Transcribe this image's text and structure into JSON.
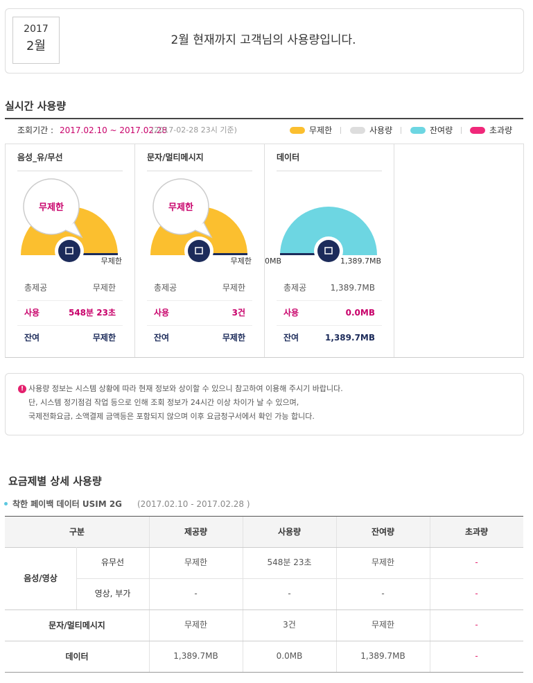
{
  "header": {
    "year": "2017",
    "month": "2월",
    "message": "2월 현재까지 고객님의 사용량입니다."
  },
  "realtime": {
    "title": "실시간 사용량",
    "period_label": "조회기간 :",
    "period": "2017.02.10 ~ 2017.02.28",
    "basis": "(2017-02-28 23시 기준)",
    "legend": [
      {
        "label": "무제한",
        "color": "#fbbf2f"
      },
      {
        "label": "사용량",
        "color": "#dddddd"
      },
      {
        "label": "잔여량",
        "color": "#6dd6e2"
      },
      {
        "label": "초과량",
        "color": "#f0287a"
      }
    ],
    "cards": [
      {
        "title": "음성_유/무선",
        "bubble": "무제한",
        "gauge_color": "#fbbf2f",
        "gauge_right": "무제한",
        "rows": [
          [
            "총제공",
            "무제한"
          ],
          [
            "사용",
            "548분 23초"
          ],
          [
            "잔여",
            "무제한"
          ]
        ]
      },
      {
        "title": "문자/멀티메시지",
        "bubble": "무제한",
        "gauge_color": "#fbbf2f",
        "gauge_right": "무제한",
        "rows": [
          [
            "총제공",
            "무제한"
          ],
          [
            "사용",
            "3건"
          ],
          [
            "잔여",
            "무제한"
          ]
        ]
      },
      {
        "title": "데이터",
        "gauge_color": "#6dd6e2",
        "gauge_left": "0MB",
        "gauge_right": "1,389.7MB",
        "rows": [
          [
            "총제공",
            "1,389.7MB"
          ],
          [
            "사용",
            "0.0MB"
          ],
          [
            "잔여",
            "1,389.7MB"
          ]
        ]
      }
    ]
  },
  "notice": [
    "사용량 정보는 시스템 상황에 따라 현재 정보와 상이할 수 있으니 참고하여 이용해 주시기 바랍니다.",
    "단, 시스템 정기점검 작업 등으로 인해 조회 정보가 24시간 이상 차이가 날 수 있으며,",
    "국제전화요금, 소액결제 금액등은 포함되지 않으며 이후 요금청구서에서 확인 가능 합니다."
  ],
  "detail": {
    "title": "요금제별 상세 사용량",
    "plan": "착한 페이백 데이터 USIM 2G",
    "plan_period": "(2017.02.10 - 2017.02.28 )",
    "table": {
      "headers": [
        "구분",
        "제공량",
        "사용량",
        "잔여량",
        "초과량"
      ],
      "groups": [
        {
          "label": "음성/영상",
          "rows": [
            {
              "sub": "유무선",
              "cells": [
                "무제한",
                "548분 23초",
                "무제한",
                "-"
              ]
            },
            {
              "sub": "영상, 부가",
              "cells": [
                "-",
                "-",
                "-",
                "-"
              ]
            }
          ]
        },
        {
          "label": "문자/멀티메시지",
          "rows": [
            {
              "cells": [
                "무제한",
                "3건",
                "무제한",
                "-"
              ]
            }
          ]
        },
        {
          "label": "데이터",
          "rows": [
            {
              "cells": [
                "1,389.7MB",
                "0.0MB",
                "1,389.7MB",
                "-"
              ]
            }
          ]
        }
      ]
    }
  }
}
